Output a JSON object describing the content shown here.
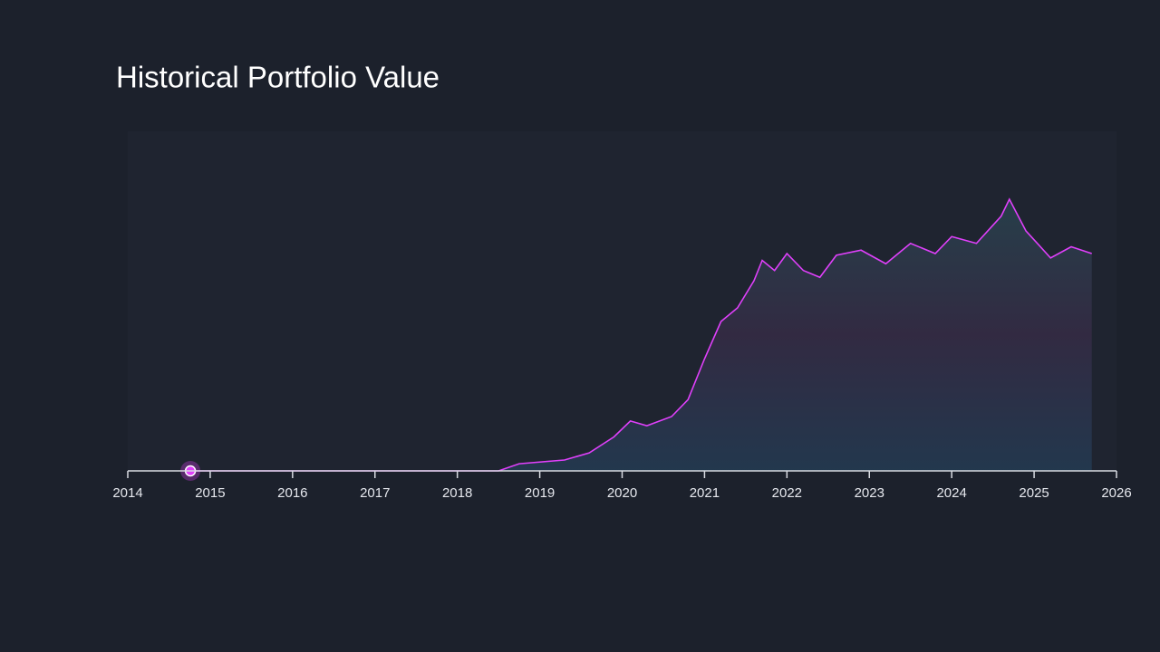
{
  "chart_data": {
    "type": "line",
    "title": "Historical Portfolio Value",
    "x": [
      2014.76,
      2018.5,
      2018.75,
      2019.3,
      2019.6,
      2019.9,
      2020.1,
      2020.3,
      2020.6,
      2020.8,
      2021.0,
      2021.2,
      2021.4,
      2021.6,
      2021.7,
      2021.85,
      2022.0,
      2022.2,
      2022.4,
      2022.6,
      2022.9,
      2023.2,
      2023.5,
      2023.8,
      2024.0,
      2024.3,
      2024.6,
      2024.7,
      2024.9,
      2025.2,
      2025.45,
      2025.7
    ],
    "series": [
      {
        "color": "#e040fb",
        "values": [
          0,
          0,
          2.1,
          3.2,
          5.3,
          10,
          14.7,
          13.3,
          16,
          21,
          33,
          44,
          48,
          56,
          62,
          59,
          64,
          59,
          57,
          63.5,
          65,
          61,
          67,
          64,
          69,
          67,
          75,
          80,
          70.7,
          62.7,
          66,
          64
        ]
      }
    ],
    "xlim": [
      2014,
      2026
    ],
    "xticks": [
      2014,
      2015,
      2016,
      2017,
      2018,
      2019,
      2020,
      2021,
      2022,
      2023,
      2024,
      2025,
      2026
    ],
    "ylim": [
      0,
      100
    ]
  }
}
